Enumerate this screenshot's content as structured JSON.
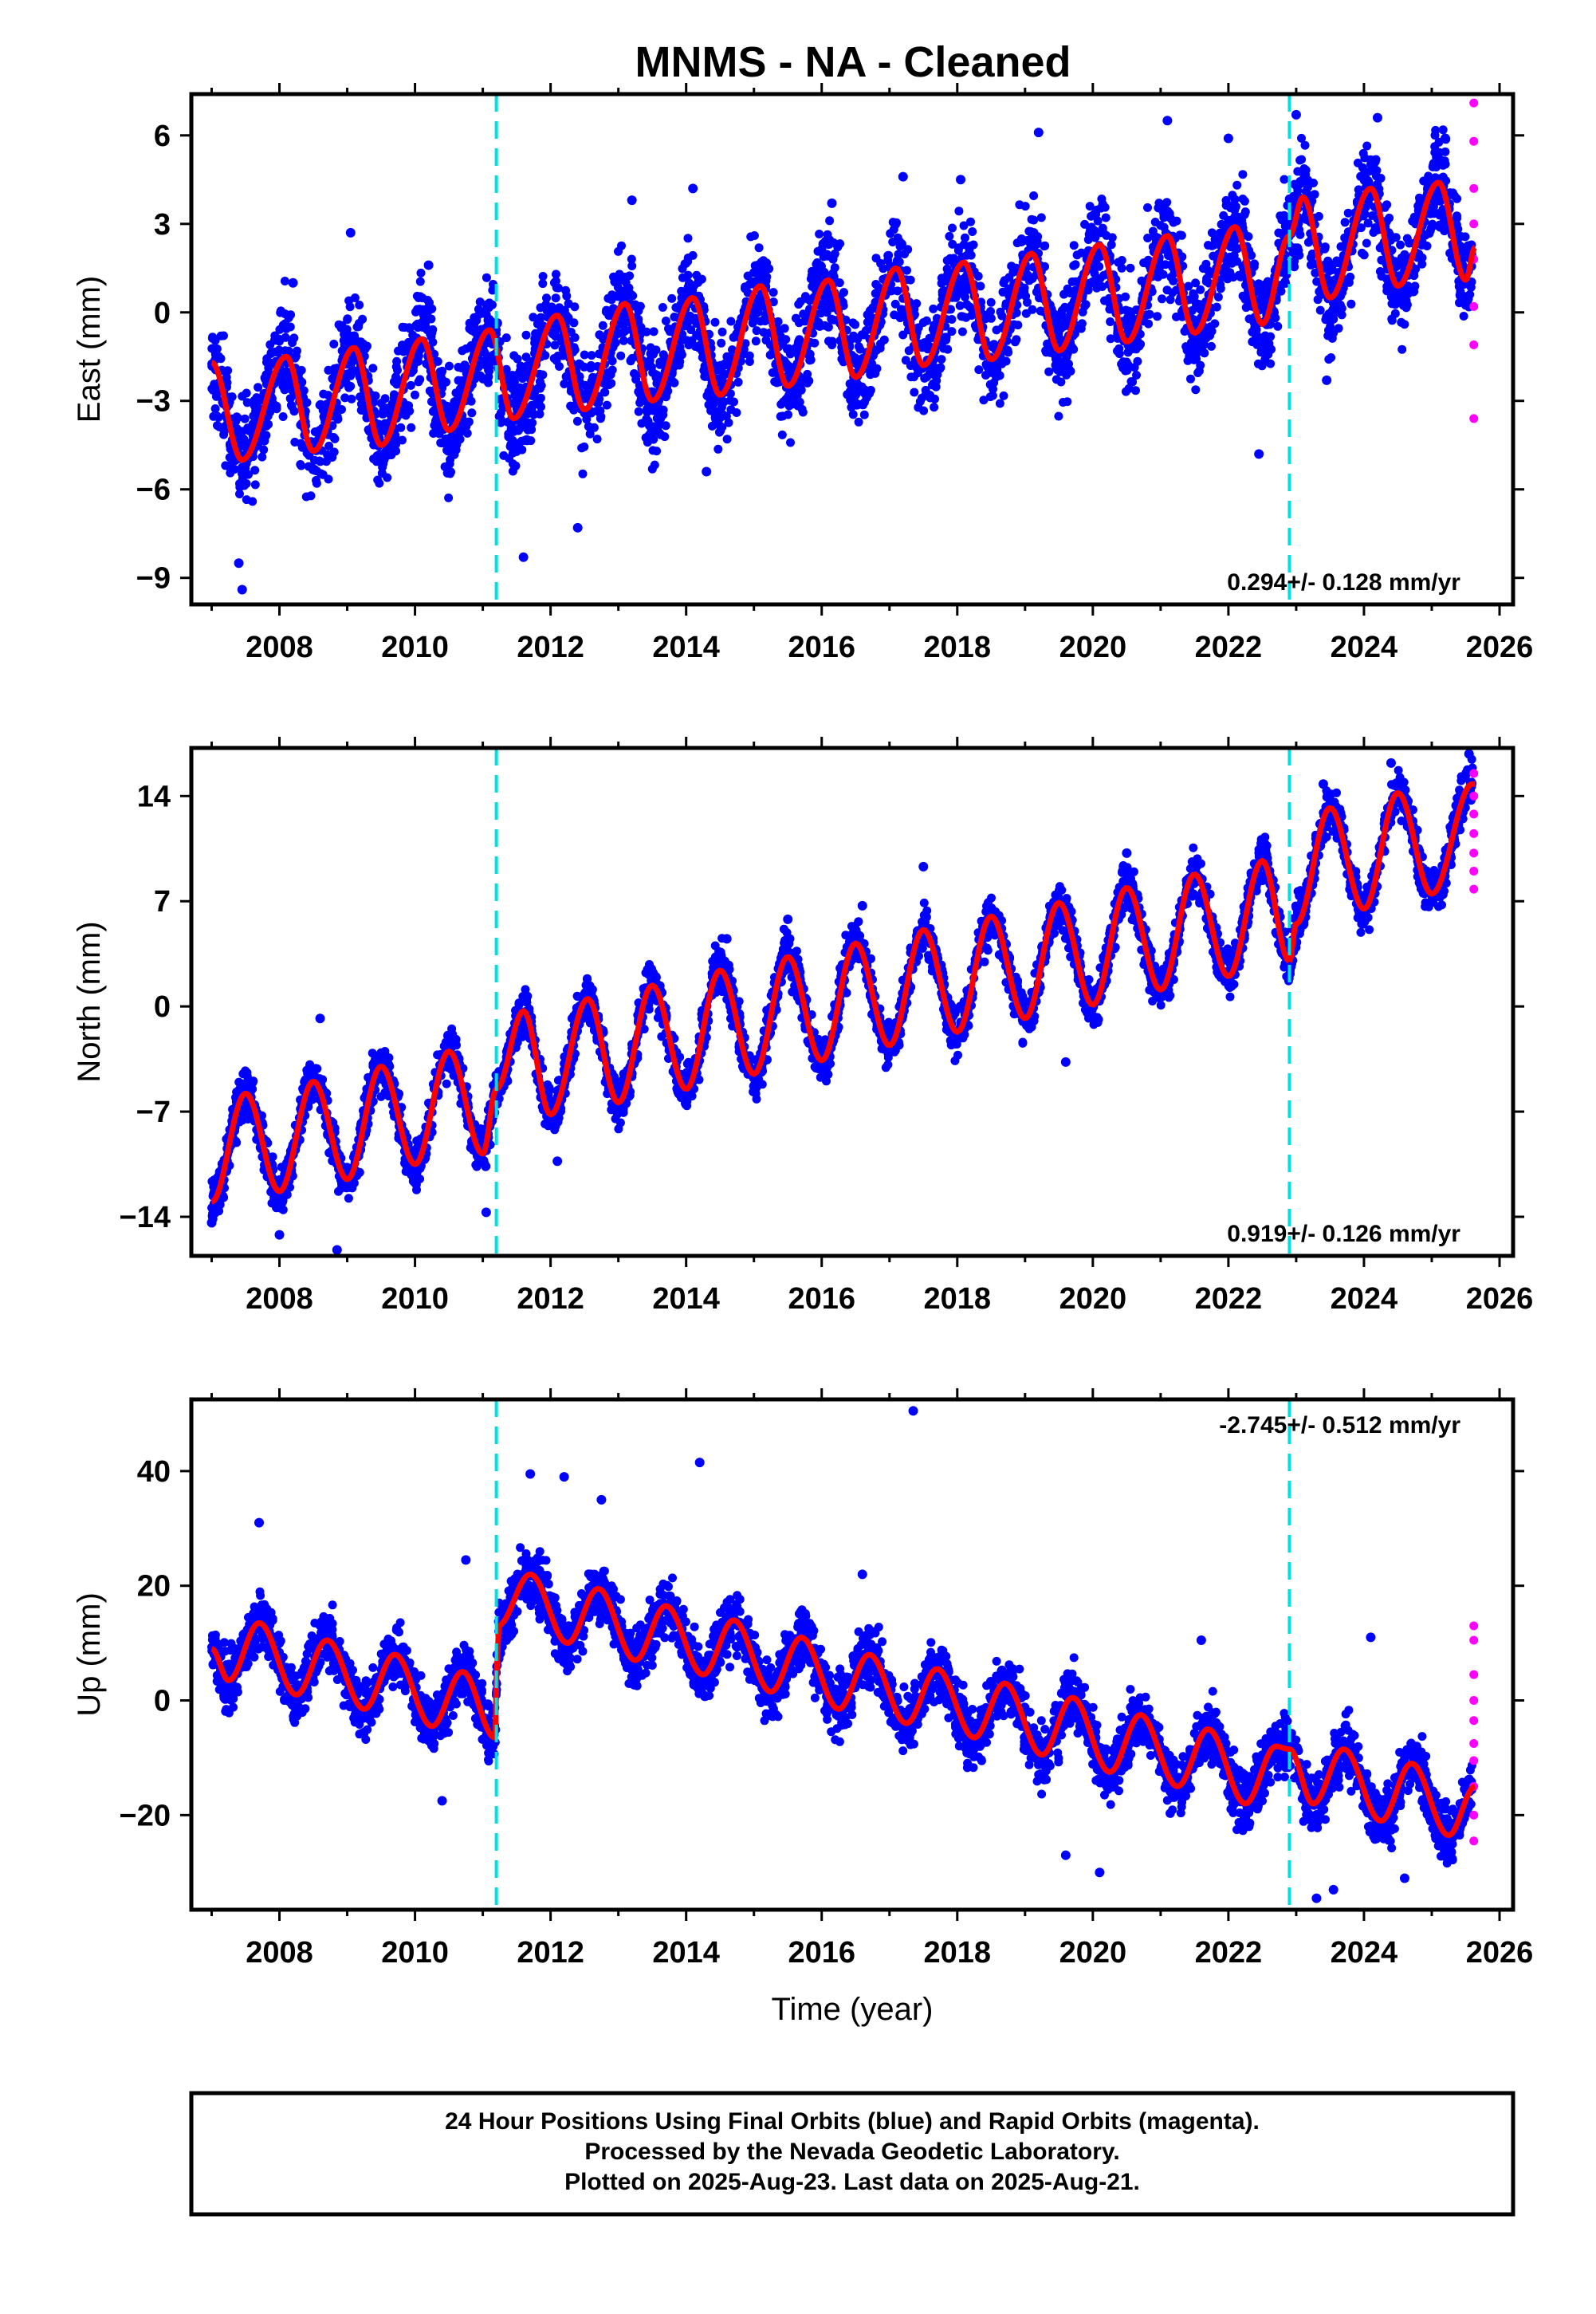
{
  "title": "MNMS  - NA - Cleaned",
  "colors": {
    "final_orbits": "#0000ff",
    "rapid_orbits": "#ff00ff",
    "model": "#ff0000",
    "offset_lines": "#00e0e0"
  },
  "footer": {
    "line1": "24 Hour Positions Using Final Orbits (blue) and Rapid Orbits (magenta).",
    "line2": "Processed by the Nevada Geodetic Laboratory.",
    "line3": "Plotted on 2025-Aug-23. Last data on 2025-Aug-21."
  },
  "chart_data": [
    {
      "type": "scatter",
      "ylabel": "East (mm)",
      "xlabel": "",
      "xlim": [
        2006.7,
        2026.2
      ],
      "ylim": [
        -9.9,
        7.4
      ],
      "xticks": [
        "2008",
        "2010",
        "2012",
        "2014",
        "2016",
        "2018",
        "2020",
        "2022",
        "2024",
        "2026"
      ],
      "yticks": [
        "-9",
        "-6",
        "-3",
        "0",
        "3",
        "6"
      ],
      "rate_label": "0.294+/- 0.128 mm/yr",
      "rate_position": "bottom-right",
      "offsets": [
        2011.2,
        2022.9
      ],
      "data_range": [
        2007.0,
        2025.64
      ],
      "model_points": [
        {
          "x": 2007.0,
          "y": -1.7
        },
        {
          "x": 2007.45,
          "y": -5.0
        },
        {
          "x": 2008.1,
          "y": -1.5
        },
        {
          "x": 2008.5,
          "y": -4.7
        },
        {
          "x": 2009.1,
          "y": -1.2
        },
        {
          "x": 2009.5,
          "y": -4.5
        },
        {
          "x": 2010.1,
          "y": -0.9
        },
        {
          "x": 2010.5,
          "y": -4.0
        },
        {
          "x": 2011.1,
          "y": -0.6
        },
        {
          "x": 2011.45,
          "y": -3.6
        },
        {
          "x": 2012.1,
          "y": -0.1
        },
        {
          "x": 2012.5,
          "y": -3.3
        },
        {
          "x": 2013.1,
          "y": 0.3
        },
        {
          "x": 2013.5,
          "y": -3.0
        },
        {
          "x": 2014.1,
          "y": 0.5
        },
        {
          "x": 2014.5,
          "y": -2.8
        },
        {
          "x": 2015.1,
          "y": 0.9
        },
        {
          "x": 2015.5,
          "y": -2.5
        },
        {
          "x": 2016.1,
          "y": 1.1
        },
        {
          "x": 2016.5,
          "y": -2.2
        },
        {
          "x": 2017.1,
          "y": 1.5
        },
        {
          "x": 2017.5,
          "y": -1.8
        },
        {
          "x": 2018.1,
          "y": 1.7
        },
        {
          "x": 2018.5,
          "y": -1.6
        },
        {
          "x": 2019.1,
          "y": 2.0
        },
        {
          "x": 2019.5,
          "y": -1.3
        },
        {
          "x": 2020.1,
          "y": 2.3
        },
        {
          "x": 2020.5,
          "y": -1.0
        },
        {
          "x": 2021.1,
          "y": 2.6
        },
        {
          "x": 2021.5,
          "y": -0.7
        },
        {
          "x": 2022.1,
          "y": 2.9
        },
        {
          "x": 2022.5,
          "y": -0.4
        },
        {
          "x": 2022.9,
          "y": 2.6
        },
        {
          "x": 2023.1,
          "y": 3.9
        },
        {
          "x": 2023.5,
          "y": 0.5
        },
        {
          "x": 2024.1,
          "y": 4.2
        },
        {
          "x": 2024.5,
          "y": 0.9
        },
        {
          "x": 2025.1,
          "y": 4.4
        },
        {
          "x": 2025.5,
          "y": 1.1
        },
        {
          "x": 2025.64,
          "y": 2.2
        }
      ],
      "series": [
        {
          "values": [
            {
              "x": 2007.1,
              "y": -1.5
            },
            {
              "x": 2007.4,
              "y": -8.5
            },
            {
              "x": 2007.45,
              "y": -9.4
            },
            {
              "x": 2008.2,
              "y": 1.0
            },
            {
              "x": 2009.05,
              "y": 2.7
            },
            {
              "x": 2010.2,
              "y": 1.6
            },
            {
              "x": 2011.6,
              "y": -8.3
            },
            {
              "x": 2012.4,
              "y": -7.3
            },
            {
              "x": 2013.2,
              "y": 3.8
            },
            {
              "x": 2014.1,
              "y": 4.2
            },
            {
              "x": 2014.3,
              "y": -5.4
            },
            {
              "x": 2016.15,
              "y": 3.7
            },
            {
              "x": 2017.2,
              "y": 4.6
            },
            {
              "x": 2018.05,
              "y": 4.5
            },
            {
              "x": 2019.2,
              "y": 6.1
            },
            {
              "x": 2021.1,
              "y": 6.5
            },
            {
              "x": 2022.0,
              "y": 5.9
            },
            {
              "x": 2022.45,
              "y": -4.8
            },
            {
              "x": 2023.0,
              "y": 6.7
            },
            {
              "x": 2023.45,
              "y": -2.3
            },
            {
              "x": 2024.2,
              "y": 6.6
            },
            {
              "x": 2025.2,
              "y": 5.9
            }
          ]
        },
        {
          "values": [
            {
              "x": 2025.62,
              "y": 7.1
            },
            {
              "x": 2025.62,
              "y": 5.8
            },
            {
              "x": 2025.62,
              "y": 4.2
            },
            {
              "x": 2025.62,
              "y": 3.0
            },
            {
              "x": 2025.62,
              "y": 1.8
            },
            {
              "x": 2025.62,
              "y": 0.2
            },
            {
              "x": 2025.62,
              "y": -1.1
            },
            {
              "x": 2025.62,
              "y": -3.6
            }
          ]
        }
      ],
      "scatter_spread": 1.6
    },
    {
      "type": "scatter",
      "ylabel": "North (mm)",
      "xlabel": "",
      "xlim": [
        2006.7,
        2026.2
      ],
      "ylim": [
        -16.6,
        17.2
      ],
      "xticks": [
        "2008",
        "2010",
        "2012",
        "2014",
        "2016",
        "2018",
        "2020",
        "2022",
        "2024",
        "2026"
      ],
      "yticks": [
        "-14",
        "-7",
        "0",
        "7",
        "14"
      ],
      "rate_label": "0.919+/- 0.126 mm/yr",
      "rate_position": "bottom-right",
      "offsets": [
        2011.2,
        2022.9
      ],
      "data_range": [
        2007.0,
        2025.64
      ],
      "model_points": [
        {
          "x": 2007.0,
          "y": -13.0
        },
        {
          "x": 2007.5,
          "y": -5.8
        },
        {
          "x": 2008.0,
          "y": -12.3
        },
        {
          "x": 2008.5,
          "y": -5.0
        },
        {
          "x": 2009.0,
          "y": -11.5
        },
        {
          "x": 2009.5,
          "y": -4.0
        },
        {
          "x": 2010.0,
          "y": -10.5
        },
        {
          "x": 2010.5,
          "y": -3.0
        },
        {
          "x": 2011.0,
          "y": -9.8
        },
        {
          "x": 2011.2,
          "y": -5.5
        },
        {
          "x": 2011.6,
          "y": -0.3
        },
        {
          "x": 2012.0,
          "y": -7.2
        },
        {
          "x": 2012.55,
          "y": 0.5
        },
        {
          "x": 2013.0,
          "y": -6.4
        },
        {
          "x": 2013.5,
          "y": 1.4
        },
        {
          "x": 2014.0,
          "y": -5.5
        },
        {
          "x": 2014.5,
          "y": 2.4
        },
        {
          "x": 2015.0,
          "y": -4.5
        },
        {
          "x": 2015.5,
          "y": 3.3
        },
        {
          "x": 2016.0,
          "y": -3.6
        },
        {
          "x": 2016.5,
          "y": 4.2
        },
        {
          "x": 2017.0,
          "y": -2.6
        },
        {
          "x": 2017.5,
          "y": 5.1
        },
        {
          "x": 2018.0,
          "y": -1.7
        },
        {
          "x": 2018.5,
          "y": 6.0
        },
        {
          "x": 2019.0,
          "y": -0.8
        },
        {
          "x": 2019.5,
          "y": 6.9
        },
        {
          "x": 2020.0,
          "y": 0.1
        },
        {
          "x": 2020.5,
          "y": 7.9
        },
        {
          "x": 2021.0,
          "y": 1.1
        },
        {
          "x": 2021.5,
          "y": 8.8
        },
        {
          "x": 2022.0,
          "y": 2.0
        },
        {
          "x": 2022.5,
          "y": 9.7
        },
        {
          "x": 2022.9,
          "y": 3.0
        },
        {
          "x": 2023.0,
          "y": 5.5
        },
        {
          "x": 2023.5,
          "y": 13.2
        },
        {
          "x": 2024.0,
          "y": 6.5
        },
        {
          "x": 2024.5,
          "y": 14.2
        },
        {
          "x": 2025.0,
          "y": 7.5
        },
        {
          "x": 2025.6,
          "y": 14.8
        }
      ],
      "series": [
        {
          "values": [
            {
              "x": 2007.0,
              "y": -14.4
            },
            {
              "x": 2008.0,
              "y": -15.2
            },
            {
              "x": 2008.85,
              "y": -16.2
            },
            {
              "x": 2008.6,
              "y": -0.8
            },
            {
              "x": 2010.6,
              "y": -2.2
            },
            {
              "x": 2011.05,
              "y": -13.7
            },
            {
              "x": 2012.1,
              "y": -10.3
            },
            {
              "x": 2014.6,
              "y": 4.5
            },
            {
              "x": 2015.5,
              "y": 5.8
            },
            {
              "x": 2016.6,
              "y": 6.7
            },
            {
              "x": 2017.5,
              "y": 9.3
            },
            {
              "x": 2019.6,
              "y": -3.7
            },
            {
              "x": 2020.5,
              "y": 10.2
            },
            {
              "x": 2023.4,
              "y": 14.8
            },
            {
              "x": 2024.4,
              "y": 16.2
            },
            {
              "x": 2025.55,
              "y": 16.8
            }
          ]
        },
        {
          "values": [
            {
              "x": 2025.62,
              "y": 15.5
            },
            {
              "x": 2025.62,
              "y": 14.0
            },
            {
              "x": 2025.62,
              "y": 12.8
            },
            {
              "x": 2025.62,
              "y": 11.5
            },
            {
              "x": 2025.62,
              "y": 10.2
            },
            {
              "x": 2025.62,
              "y": 9.0
            },
            {
              "x": 2025.62,
              "y": 7.8
            }
          ]
        }
      ],
      "scatter_spread": 1.4
    },
    {
      "type": "scatter",
      "ylabel": "Up (mm)",
      "xlabel": "Time (year)",
      "xlim": [
        2006.7,
        2026.2
      ],
      "ylim": [
        -36.5,
        52.5
      ],
      "xticks": [
        "2008",
        "2010",
        "2012",
        "2014",
        "2016",
        "2018",
        "2020",
        "2022",
        "2024",
        "2026"
      ],
      "yticks": [
        "-20",
        "0",
        "20",
        "40"
      ],
      "rate_label": "-2.745+/- 0.512 mm/yr",
      "rate_position": "top-right",
      "offsets": [
        2011.2,
        2022.9
      ],
      "data_range": [
        2007.0,
        2025.64
      ],
      "model_points": [
        {
          "x": 2007.0,
          "y": 9.0
        },
        {
          "x": 2007.25,
          "y": 3.5
        },
        {
          "x": 2007.7,
          "y": 13.5
        },
        {
          "x": 2008.25,
          "y": 1.0
        },
        {
          "x": 2008.7,
          "y": 10.5
        },
        {
          "x": 2009.25,
          "y": -1.5
        },
        {
          "x": 2009.7,
          "y": 8.0
        },
        {
          "x": 2010.25,
          "y": -4.5
        },
        {
          "x": 2010.7,
          "y": 5.0
        },
        {
          "x": 2011.18,
          "y": -6.5
        },
        {
          "x": 2011.22,
          "y": 13.0
        },
        {
          "x": 2011.7,
          "y": 22.0
        },
        {
          "x": 2012.25,
          "y": 10.0
        },
        {
          "x": 2012.7,
          "y": 19.5
        },
        {
          "x": 2013.25,
          "y": 7.0
        },
        {
          "x": 2013.7,
          "y": 16.5
        },
        {
          "x": 2014.25,
          "y": 4.5
        },
        {
          "x": 2014.7,
          "y": 14.0
        },
        {
          "x": 2015.25,
          "y": 1.5
        },
        {
          "x": 2015.7,
          "y": 11.0
        },
        {
          "x": 2016.25,
          "y": -1.5
        },
        {
          "x": 2016.7,
          "y": 8.0
        },
        {
          "x": 2017.25,
          "y": -4.0
        },
        {
          "x": 2017.7,
          "y": 5.5
        },
        {
          "x": 2018.25,
          "y": -6.5
        },
        {
          "x": 2018.7,
          "y": 3.0
        },
        {
          "x": 2019.25,
          "y": -9.5
        },
        {
          "x": 2019.7,
          "y": 0.5
        },
        {
          "x": 2020.25,
          "y": -12.5
        },
        {
          "x": 2020.7,
          "y": -2.5
        },
        {
          "x": 2021.25,
          "y": -15.0
        },
        {
          "x": 2021.7,
          "y": -5.0
        },
        {
          "x": 2022.25,
          "y": -18.0
        },
        {
          "x": 2022.7,
          "y": -8.0
        },
        {
          "x": 2022.9,
          "y": -8.5
        },
        {
          "x": 2023.25,
          "y": -18.0
        },
        {
          "x": 2023.7,
          "y": -8.5
        },
        {
          "x": 2024.25,
          "y": -21.0
        },
        {
          "x": 2024.7,
          "y": -11.0
        },
        {
          "x": 2025.25,
          "y": -23.5
        },
        {
          "x": 2025.64,
          "y": -15.0
        }
      ],
      "series": [
        {
          "values": [
            {
              "x": 2007.7,
              "y": 31.0
            },
            {
              "x": 2010.4,
              "y": -17.5
            },
            {
              "x": 2010.75,
              "y": 24.5
            },
            {
              "x": 2011.7,
              "y": 39.5
            },
            {
              "x": 2012.2,
              "y": 39.0
            },
            {
              "x": 2012.75,
              "y": 35.0
            },
            {
              "x": 2014.2,
              "y": 41.5
            },
            {
              "x": 2016.6,
              "y": 22.0
            },
            {
              "x": 2017.35,
              "y": 50.5
            },
            {
              "x": 2019.6,
              "y": -27.0
            },
            {
              "x": 2020.1,
              "y": -30.0
            },
            {
              "x": 2021.6,
              "y": 10.5
            },
            {
              "x": 2023.3,
              "y": -34.5
            },
            {
              "x": 2023.55,
              "y": -33.0
            },
            {
              "x": 2024.1,
              "y": 11.0
            },
            {
              "x": 2024.6,
              "y": -31.0
            }
          ]
        },
        {
          "values": [
            {
              "x": 2025.62,
              "y": 13.0
            },
            {
              "x": 2025.62,
              "y": 10.5
            },
            {
              "x": 2025.62,
              "y": 4.5
            },
            {
              "x": 2025.62,
              "y": 0.0
            },
            {
              "x": 2025.62,
              "y": -3.5
            },
            {
              "x": 2025.62,
              "y": -7.5
            },
            {
              "x": 2025.62,
              "y": -10.5
            },
            {
              "x": 2025.62,
              "y": -15.0
            },
            {
              "x": 2025.62,
              "y": -20.0
            },
            {
              "x": 2025.62,
              "y": -24.5
            }
          ]
        }
      ],
      "scatter_spread": 4.5
    }
  ]
}
